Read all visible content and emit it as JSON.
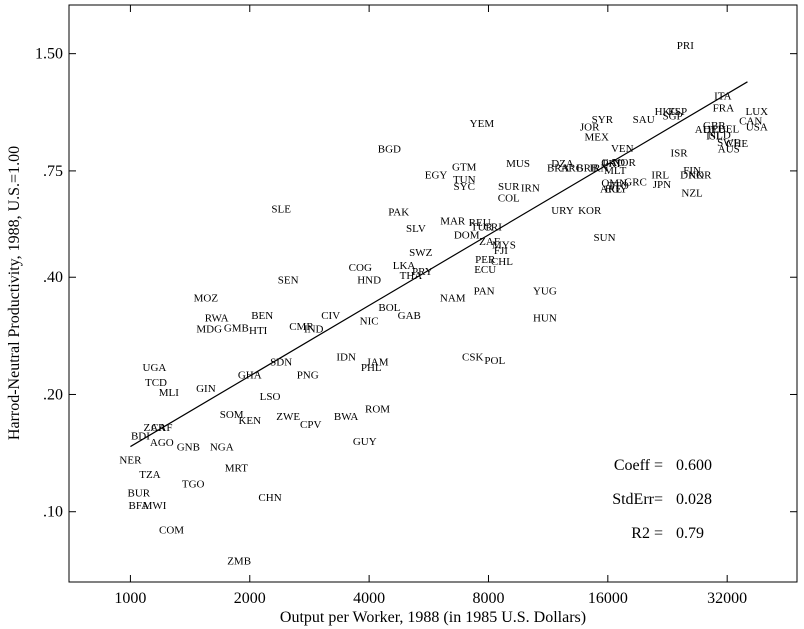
{
  "chart_data": {
    "type": "scatter",
    "xlabel": "Output per Worker, 1988 (in 1985 U.S. Dollars)",
    "ylabel": "Harrod-Neutral Productivity, 1988, U.S.=1.00",
    "x_scale": "log2",
    "y_scale": "log",
    "xlim": [
      700,
      48000
    ],
    "ylim": [
      0.066,
      2.0
    ],
    "x_ticks": [
      1000,
      2000,
      4000,
      8000,
      16000,
      32000
    ],
    "x_tick_labels": [
      "1000",
      "2000",
      "4000",
      "8000",
      "16000",
      "32000"
    ],
    "y_ticks": [
      0.1,
      0.2,
      0.4,
      0.75,
      1.5
    ],
    "y_tick_labels": [
      ".10",
      ".20",
      ".40",
      ".75",
      "1.50"
    ],
    "grid": false,
    "points": [
      {
        "label": "PRI",
        "x": 25100,
        "y": 1.58
      },
      {
        "label": "ITA",
        "x": 31200,
        "y": 1.17
      },
      {
        "label": "FRA",
        "x": 31300,
        "y": 1.09
      },
      {
        "label": "LUX",
        "x": 38000,
        "y": 1.07
      },
      {
        "label": "HKG",
        "x": 22500,
        "y": 1.07
      },
      {
        "label": "ESP",
        "x": 24000,
        "y": 1.07
      },
      {
        "label": "SGP",
        "x": 23300,
        "y": 1.04
      },
      {
        "label": "SAU",
        "x": 19700,
        "y": 1.02
      },
      {
        "label": "SYR",
        "x": 15500,
        "y": 1.02
      },
      {
        "label": "CAN",
        "x": 36700,
        "y": 1.01
      },
      {
        "label": "GBR",
        "x": 29700,
        "y": 0.985
      },
      {
        "label": "USA",
        "x": 38000,
        "y": 0.975
      },
      {
        "label": "JOR",
        "x": 14400,
        "y": 0.975
      },
      {
        "label": "AUT",
        "x": 28300,
        "y": 0.96
      },
      {
        "label": "DEU",
        "x": 29700,
        "y": 0.96
      },
      {
        "label": "BEL",
        "x": 32300,
        "y": 0.965
      },
      {
        "label": "YEM",
        "x": 7700,
        "y": 0.995
      },
      {
        "label": "MEX",
        "x": 15000,
        "y": 0.92
      },
      {
        "label": "ISL",
        "x": 29700,
        "y": 0.925
      },
      {
        "label": "NLD",
        "x": 30600,
        "y": 0.93
      },
      {
        "label": "SWE",
        "x": 32300,
        "y": 0.89
      },
      {
        "label": "CHE",
        "x": 33900,
        "y": 0.885
      },
      {
        "label": "AUS",
        "x": 32300,
        "y": 0.855
      },
      {
        "label": "BGD",
        "x": 4500,
        "y": 0.855
      },
      {
        "label": "VEN",
        "x": 17400,
        "y": 0.86
      },
      {
        "label": "ISR",
        "x": 24200,
        "y": 0.835
      },
      {
        "label": "GTM",
        "x": 6950,
        "y": 0.77
      },
      {
        "label": "MUS",
        "x": 9500,
        "y": 0.785
      },
      {
        "label": "DZA",
        "x": 12300,
        "y": 0.785
      },
      {
        "label": "BRA",
        "x": 12000,
        "y": 0.765
      },
      {
        "label": "ARG",
        "x": 13000,
        "y": 0.765
      },
      {
        "label": "BRB",
        "x": 14200,
        "y": 0.765
      },
      {
        "label": "IRN",
        "x": 15200,
        "y": 0.765
      },
      {
        "label": "GAO",
        "x": 16500,
        "y": 0.79
      },
      {
        "label": "PRT",
        "x": 16400,
        "y": 0.785
      },
      {
        "label": "MLT",
        "x": 16700,
        "y": 0.755
      },
      {
        "label": "NOR",
        "x": 17600,
        "y": 0.79
      },
      {
        "label": "IRL",
        "x": 21700,
        "y": 0.735
      },
      {
        "label": "EGY",
        "x": 5900,
        "y": 0.735
      },
      {
        "label": "TUN",
        "x": 6950,
        "y": 0.715
      },
      {
        "label": "FIN",
        "x": 26100,
        "y": 0.755
      },
      {
        "label": "DNK",
        "x": 26100,
        "y": 0.735
      },
      {
        "label": "KOR",
        "x": 27300,
        "y": 0.735
      },
      {
        "label": "SYC",
        "x": 6950,
        "y": 0.685
      },
      {
        "label": "SUR",
        "x": 9000,
        "y": 0.685
      },
      {
        "label": "IRN",
        "x": 10200,
        "y": 0.68
      },
      {
        "label": "OMN",
        "x": 16600,
        "y": 0.7
      },
      {
        "label": "TTO",
        "x": 17000,
        "y": 0.69
      },
      {
        "label": "ARE",
        "x": 16300,
        "y": 0.675
      },
      {
        "label": "GRC",
        "x": 18800,
        "y": 0.705
      },
      {
        "label": "EGY",
        "x": 16800,
        "y": 0.675
      },
      {
        "label": "JPN",
        "x": 21900,
        "y": 0.695
      },
      {
        "label": "COL",
        "x": 9000,
        "y": 0.64
      },
      {
        "label": "NZL",
        "x": 26100,
        "y": 0.66
      },
      {
        "label": "URY",
        "x": 12300,
        "y": 0.595
      },
      {
        "label": "KOR",
        "x": 14400,
        "y": 0.595
      },
      {
        "label": "SLE",
        "x": 2400,
        "y": 0.6
      },
      {
        "label": "PAK",
        "x": 4750,
        "y": 0.59
      },
      {
        "label": "MAR",
        "x": 6500,
        "y": 0.56
      },
      {
        "label": "REU",
        "x": 7600,
        "y": 0.555
      },
      {
        "label": "TUR",
        "x": 7700,
        "y": 0.54
      },
      {
        "label": "CRI",
        "x": 8200,
        "y": 0.54
      },
      {
        "label": "SLV",
        "x": 5250,
        "y": 0.535
      },
      {
        "label": "DOM",
        "x": 7050,
        "y": 0.515
      },
      {
        "label": "SUN",
        "x": 15700,
        "y": 0.508
      },
      {
        "label": "ZAF",
        "x": 8050,
        "y": 0.495
      },
      {
        "label": "MYS",
        "x": 8750,
        "y": 0.485
      },
      {
        "label": "FJI",
        "x": 8600,
        "y": 0.47
      },
      {
        "label": "SWZ",
        "x": 5400,
        "y": 0.465
      },
      {
        "label": "PER",
        "x": 7850,
        "y": 0.445
      },
      {
        "label": "CHL",
        "x": 8650,
        "y": 0.44
      },
      {
        "label": "COG",
        "x": 3800,
        "y": 0.425
      },
      {
        "label": "LKA",
        "x": 4900,
        "y": 0.43
      },
      {
        "label": "PRY",
        "x": 5450,
        "y": 0.415
      },
      {
        "label": "ECU",
        "x": 7850,
        "y": 0.42
      },
      {
        "label": "HND",
        "x": 4000,
        "y": 0.395
      },
      {
        "label": "THA",
        "x": 5100,
        "y": 0.405
      },
      {
        "label": "SEN",
        "x": 2500,
        "y": 0.395
      },
      {
        "label": "YUG",
        "x": 11100,
        "y": 0.37
      },
      {
        "label": "PAN",
        "x": 7800,
        "y": 0.37
      },
      {
        "label": "NAM",
        "x": 6500,
        "y": 0.355
      },
      {
        "label": "MOZ",
        "x": 1550,
        "y": 0.355
      },
      {
        "label": "BOL",
        "x": 4500,
        "y": 0.335
      },
      {
        "label": "GAB",
        "x": 5050,
        "y": 0.32
      },
      {
        "label": "HUN",
        "x": 11100,
        "y": 0.315
      },
      {
        "label": "BEN",
        "x": 2150,
        "y": 0.32
      },
      {
        "label": "CIV",
        "x": 3200,
        "y": 0.32
      },
      {
        "label": "RWA",
        "x": 1650,
        "y": 0.315
      },
      {
        "label": "NIC",
        "x": 4000,
        "y": 0.31
      },
      {
        "label": "CMR",
        "x": 2700,
        "y": 0.3
      },
      {
        "label": "IND",
        "x": 2900,
        "y": 0.295
      },
      {
        "label": "MDG",
        "x": 1580,
        "y": 0.295
      },
      {
        "label": "GMB",
        "x": 1850,
        "y": 0.297
      },
      {
        "label": "HTI",
        "x": 2100,
        "y": 0.293
      },
      {
        "label": "IDN",
        "x": 3500,
        "y": 0.25
      },
      {
        "label": "CSK",
        "x": 7300,
        "y": 0.25
      },
      {
        "label": "POL",
        "x": 8300,
        "y": 0.245
      },
      {
        "label": "JAM",
        "x": 4200,
        "y": 0.243
      },
      {
        "label": "SDN",
        "x": 2400,
        "y": 0.243
      },
      {
        "label": "PHL",
        "x": 4050,
        "y": 0.235
      },
      {
        "label": "UGA",
        "x": 1150,
        "y": 0.235
      },
      {
        "label": "GHA",
        "x": 2000,
        "y": 0.225
      },
      {
        "label": "PNG",
        "x": 2800,
        "y": 0.225
      },
      {
        "label": "TCD",
        "x": 1160,
        "y": 0.215
      },
      {
        "label": "GIN",
        "x": 1550,
        "y": 0.208
      },
      {
        "label": "MLI",
        "x": 1250,
        "y": 0.203
      },
      {
        "label": "LSO",
        "x": 2250,
        "y": 0.198
      },
      {
        "label": "ROM",
        "x": 4200,
        "y": 0.184
      },
      {
        "label": "SOM",
        "x": 1800,
        "y": 0.178
      },
      {
        "label": "BWA",
        "x": 3500,
        "y": 0.176
      },
      {
        "label": "ZWE",
        "x": 2500,
        "y": 0.176
      },
      {
        "label": "KEN",
        "x": 2000,
        "y": 0.172
      },
      {
        "label": "CPV",
        "x": 2850,
        "y": 0.168
      },
      {
        "label": "ZAR",
        "x": 1150,
        "y": 0.165
      },
      {
        "label": "CAF",
        "x": 1200,
        "y": 0.165
      },
      {
        "label": "BDI",
        "x": 1060,
        "y": 0.157
      },
      {
        "label": "AGO",
        "x": 1200,
        "y": 0.151
      },
      {
        "label": "GUY",
        "x": 3900,
        "y": 0.152
      },
      {
        "label": "GNB",
        "x": 1400,
        "y": 0.147
      },
      {
        "label": "NGA",
        "x": 1700,
        "y": 0.147
      },
      {
        "label": "NER",
        "x": 1000,
        "y": 0.136
      },
      {
        "label": "MRT",
        "x": 1850,
        "y": 0.13
      },
      {
        "label": "TZA",
        "x": 1120,
        "y": 0.125
      },
      {
        "label": "TGO",
        "x": 1440,
        "y": 0.118
      },
      {
        "label": "BUR",
        "x": 1050,
        "y": 0.112
      },
      {
        "label": "CHN",
        "x": 2250,
        "y": 0.109
      },
      {
        "label": "MWI",
        "x": 1150,
        "y": 0.104
      },
      {
        "label": "BFA",
        "x": 1050,
        "y": 0.104
      },
      {
        "label": "COM",
        "x": 1270,
        "y": 0.09
      },
      {
        "label": "ZMB",
        "x": 1880,
        "y": 0.075
      }
    ],
    "fit_line": {
      "x": [
        1000,
        36000
      ],
      "y": [
        0.147,
        1.27
      ]
    },
    "stats": [
      {
        "name": "Coeff =",
        "value": "0.600"
      },
      {
        "name": "StdErr=",
        "value": "0.028"
      },
      {
        "name": "R2  =",
        "value": "0.79"
      }
    ]
  }
}
